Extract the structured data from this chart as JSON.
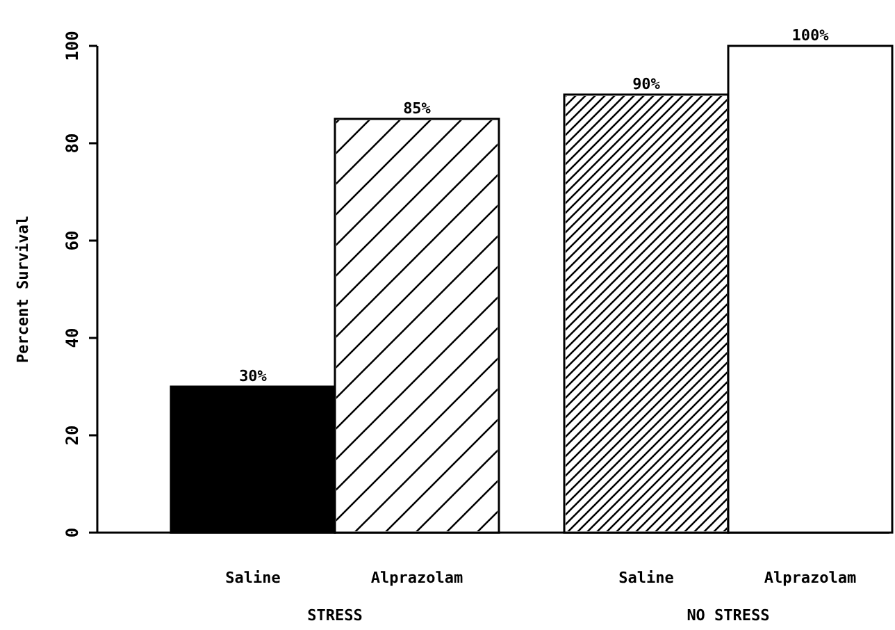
{
  "chart_data": {
    "type": "bar",
    "ylabel": "Percent Survival",
    "categories": [
      "Saline",
      "Alprazolam",
      "Saline",
      "Alprazolam"
    ],
    "values": [
      30,
      85,
      90,
      100
    ],
    "value_labels": [
      "30%",
      "85%",
      "90%",
      "100%"
    ],
    "colors": [
      "#000000",
      "#ffffff",
      "#ffffff",
      "#ffffff"
    ],
    "ylim": [
      0,
      100
    ],
    "yticks": [
      0,
      20,
      40,
      60,
      80,
      100
    ],
    "annotations": [
      "STRESS",
      "NO STRESS"
    ],
    "grid": false
  }
}
